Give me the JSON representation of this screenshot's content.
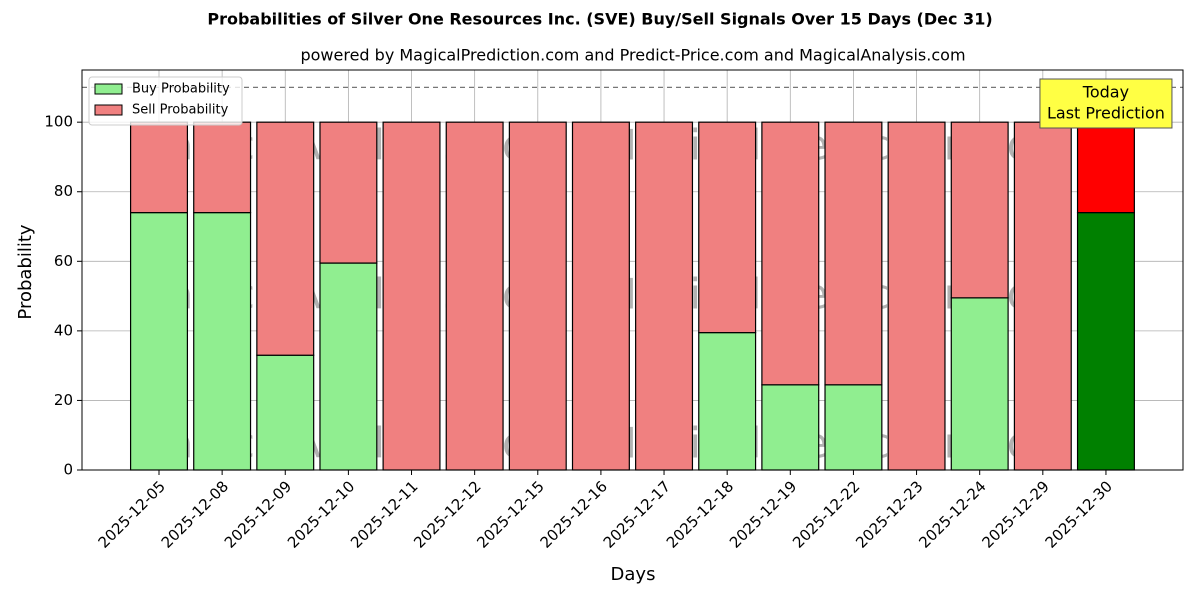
{
  "chart_data": {
    "type": "stacked_bar",
    "title": "Probabilities of Silver One Resources Inc. (SVE) Buy/Sell Signals Over 15 Days (Dec 31)",
    "subtitle": "powered by MagicalPrediction.com and Predict-Price.com and MagicalAnalysis.com",
    "x_label": "Days",
    "y_label": "Probability",
    "categories": [
      "2025-12-05",
      "2025-12-08",
      "2025-12-09",
      "2025-12-10",
      "2025-12-11",
      "2025-12-12",
      "2025-12-15",
      "2025-12-16",
      "2025-12-17",
      "2025-12-18",
      "2025-12-19",
      "2025-12-22",
      "2025-12-23",
      "2025-12-24",
      "2025-12-29",
      "2025-12-30"
    ],
    "series": [
      {
        "name": "Buy Probability",
        "color": "#90ee90",
        "highlight_color": "#008000",
        "values": [
          74,
          74,
          33,
          59.5,
          0,
          0,
          0,
          0,
          0,
          39.5,
          24.5,
          24.5,
          0,
          49.5,
          0,
          74
        ]
      },
      {
        "name": "Sell Probability",
        "color": "#f08080",
        "highlight_color": "#ff0000",
        "values": [
          26,
          26,
          67,
          40.5,
          100,
          100,
          100,
          100,
          100,
          60.5,
          75.5,
          75.5,
          100,
          50.5,
          100,
          26
        ]
      }
    ],
    "ylim": [
      0,
      115
    ],
    "yticks": [
      0,
      20,
      40,
      60,
      80,
      100
    ],
    "grid": true,
    "legend": "upper left",
    "reference_line": 110,
    "annotation": {
      "lines": [
        "Today",
        "Last Prediction"
      ],
      "color": "#ffff44"
    },
    "watermarks": [
      "MagicalAnalysis.com",
      "MagicalPrediction.com"
    ]
  }
}
